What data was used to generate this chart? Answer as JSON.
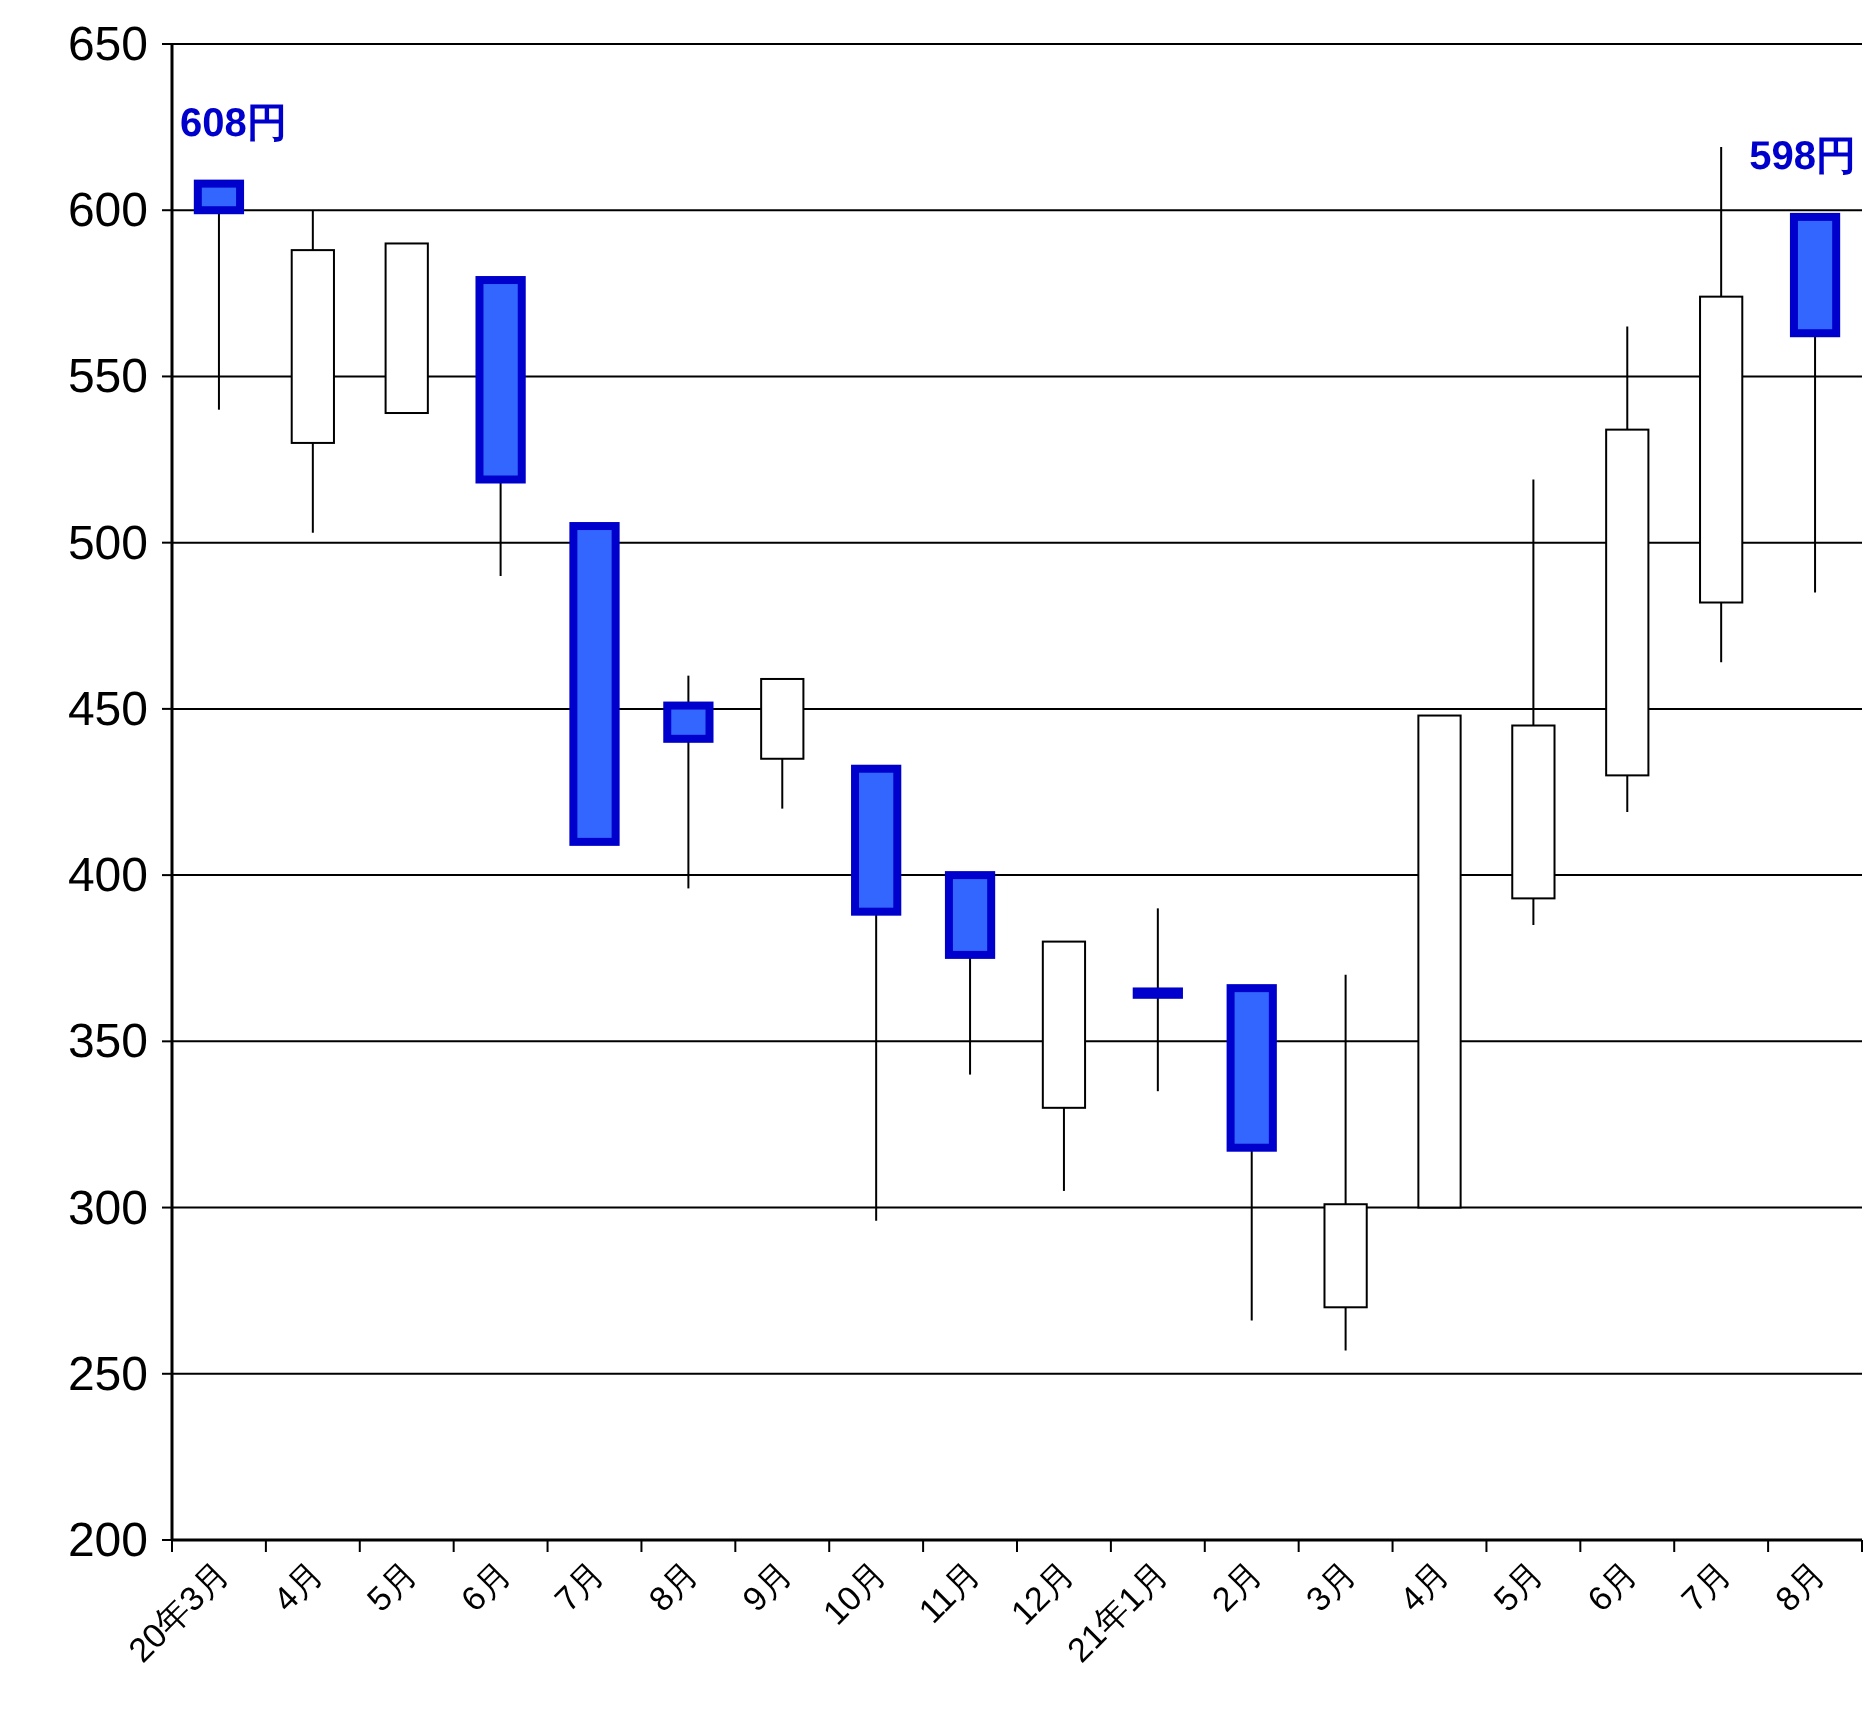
{
  "chart_data": {
    "type": "candlestick",
    "categories": [
      "20年3月",
      "4月",
      "5月",
      "6月",
      "7月",
      "8月",
      "9月",
      "10月",
      "11月",
      "12月",
      "21年1月",
      "2月",
      "3月",
      "4月",
      "5月",
      "6月",
      "7月",
      "8月"
    ],
    "ohlc": [
      [
        608,
        608,
        540,
        600
      ],
      [
        530,
        600,
        503,
        588
      ],
      [
        539,
        590,
        539,
        590
      ],
      [
        579,
        579,
        490,
        519
      ],
      [
        505,
        505,
        410,
        410
      ],
      [
        451,
        460,
        396,
        441
      ],
      [
        435,
        459,
        420,
        459
      ],
      [
        432,
        432,
        296,
        389
      ],
      [
        400,
        400,
        340,
        376
      ],
      [
        330,
        380,
        305,
        380
      ],
      [
        365,
        390,
        335,
        364
      ],
      [
        366,
        366,
        266,
        318
      ],
      [
        270,
        370,
        257,
        301
      ],
      [
        300,
        448,
        300,
        448
      ],
      [
        393,
        519,
        385,
        445
      ],
      [
        430,
        565,
        419,
        534
      ],
      [
        482,
        619,
        464,
        574
      ],
      [
        598,
        598,
        485,
        563
      ]
    ],
    "colors": [
      "#3366ff",
      "#ffffff",
      "#ffffff",
      "#3366ff",
      "#3366ff",
      "#3366ff",
      "#ffffff",
      "#3366ff",
      "#3366ff",
      "#ffffff",
      "#3366ff",
      "#3366ff",
      "#ffffff",
      "#ffffff",
      "#ffffff",
      "#ffffff",
      "#ffffff",
      "#3366ff"
    ],
    "ylim": [
      200,
      650
    ],
    "yticks": [
      200,
      250,
      300,
      350,
      400,
      450,
      500,
      550,
      600,
      650
    ],
    "grid": "y",
    "annotations": [
      "608円",
      "598円"
    ]
  }
}
